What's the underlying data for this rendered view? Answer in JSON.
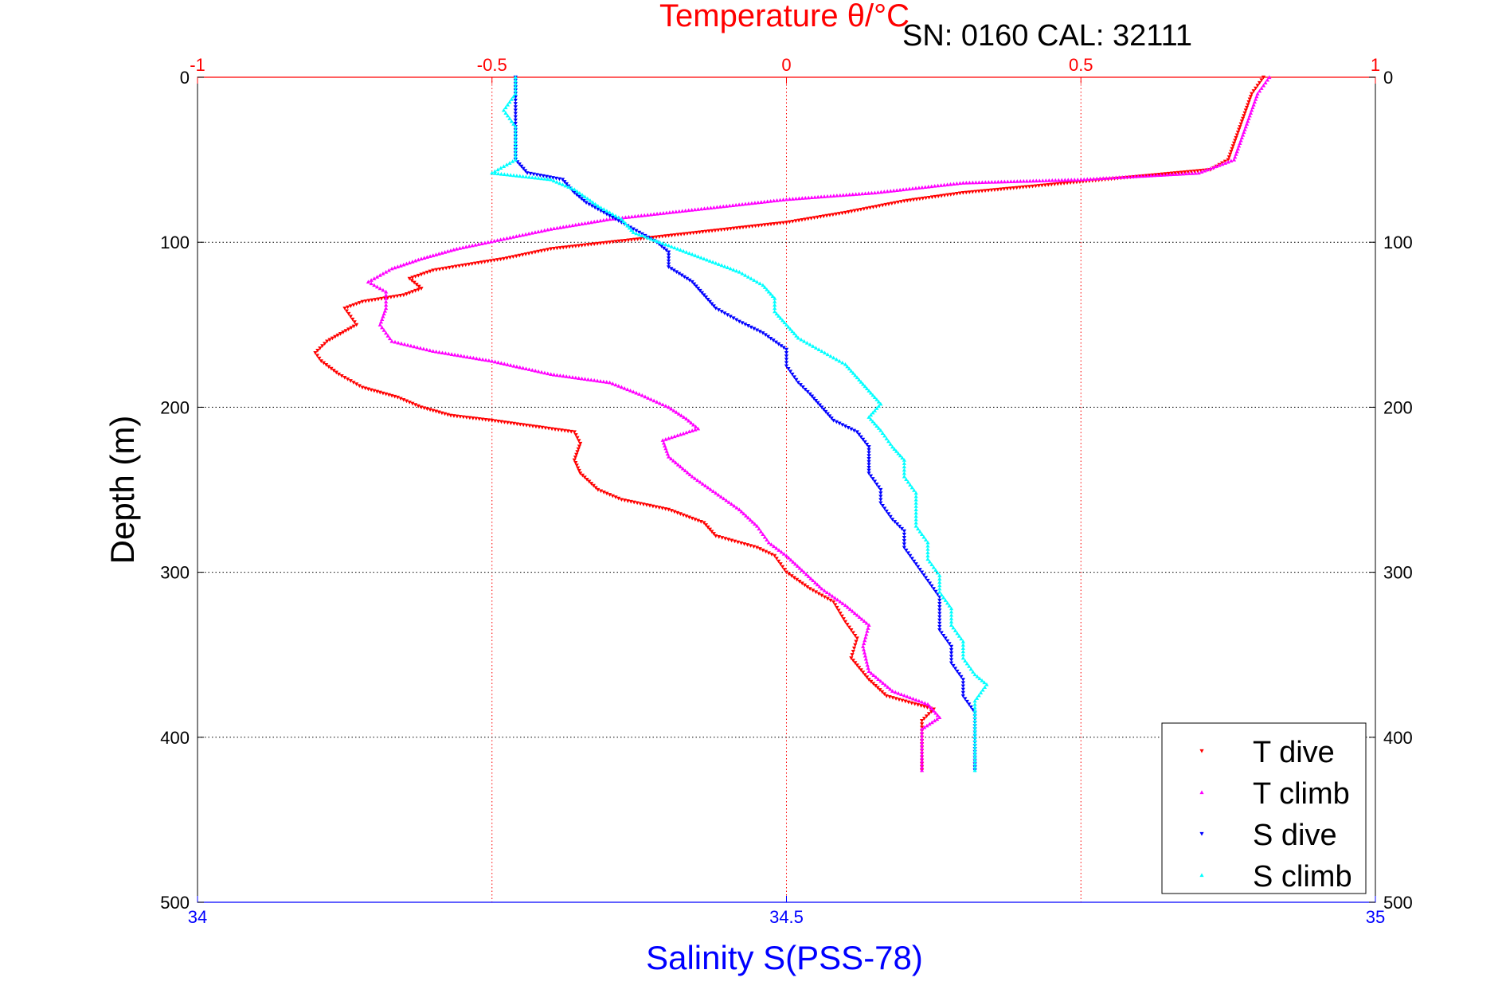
{
  "chart_data": {
    "type": "scatter",
    "title_top": "Temperature θ/°C",
    "annotation": "SN: 0160  CAL: 32111",
    "xlabel_bottom": "Salinity S(PSS-78)",
    "ylabel": "Depth (m)",
    "temperature_axis": {
      "range": [
        -1,
        1
      ],
      "ticks": [
        "-1",
        "-0.5",
        "0",
        "0.5",
        "1"
      ]
    },
    "salinity_axis": {
      "range": [
        34,
        35
      ],
      "ticks": [
        "34",
        "34.5",
        "35"
      ]
    },
    "depth_axis": {
      "range": [
        0,
        500
      ],
      "reversed": true,
      "ticks": [
        "0",
        "100",
        "200",
        "300",
        "400",
        "500"
      ]
    },
    "grid": true,
    "legend_position": "bottom-right",
    "colors": {
      "temperature_axis": "#ff0000",
      "salinity_axis": "#0000ff",
      "depth_axis": "#000000",
      "grid": "#000000"
    },
    "series": [
      {
        "name": "T dive",
        "variable": "temperature",
        "color": "#ff0000",
        "marker": "triangle-down",
        "points": [
          [
            0.81,
            0
          ],
          [
            0.79,
            10
          ],
          [
            0.78,
            20
          ],
          [
            0.77,
            30
          ],
          [
            0.76,
            40
          ],
          [
            0.75,
            50
          ],
          [
            0.72,
            56
          ],
          [
            0.6,
            60
          ],
          [
            0.45,
            65
          ],
          [
            0.3,
            70
          ],
          [
            0.2,
            75
          ],
          [
            0.1,
            82
          ],
          [
            0.0,
            88
          ],
          [
            -0.1,
            92
          ],
          [
            -0.2,
            96
          ],
          [
            -0.3,
            100
          ],
          [
            -0.4,
            104
          ],
          [
            -0.48,
            110
          ],
          [
            -0.55,
            114
          ],
          [
            -0.6,
            117
          ],
          [
            -0.64,
            122
          ],
          [
            -0.62,
            128
          ],
          [
            -0.65,
            132
          ],
          [
            -0.72,
            136
          ],
          [
            -0.75,
            140
          ],
          [
            -0.73,
            150
          ],
          [
            -0.78,
            160
          ],
          [
            -0.8,
            167
          ],
          [
            -0.79,
            172
          ],
          [
            -0.76,
            180
          ],
          [
            -0.72,
            188
          ],
          [
            -0.66,
            194
          ],
          [
            -0.62,
            200
          ],
          [
            -0.57,
            205
          ],
          [
            -0.5,
            208
          ],
          [
            -0.42,
            212
          ],
          [
            -0.36,
            215
          ],
          [
            -0.35,
            222
          ],
          [
            -0.36,
            232
          ],
          [
            -0.35,
            240
          ],
          [
            -0.32,
            250
          ],
          [
            -0.28,
            256
          ],
          [
            -0.2,
            262
          ],
          [
            -0.14,
            270
          ],
          [
            -0.12,
            278
          ],
          [
            -0.05,
            285
          ],
          [
            -0.02,
            290
          ],
          [
            0.0,
            300
          ],
          [
            0.04,
            310
          ],
          [
            0.08,
            318
          ],
          [
            0.1,
            330
          ],
          [
            0.12,
            340
          ],
          [
            0.11,
            352
          ],
          [
            0.14,
            365
          ],
          [
            0.17,
            375
          ],
          [
            0.25,
            383
          ],
          [
            0.23,
            390
          ],
          [
            0.23,
            400
          ],
          [
            0.23,
            410
          ],
          [
            0.23,
            420
          ]
        ]
      },
      {
        "name": "T climb",
        "variable": "temperature",
        "color": "#ff00ff",
        "marker": "triangle-up",
        "points": [
          [
            0.82,
            0
          ],
          [
            0.8,
            10
          ],
          [
            0.79,
            20
          ],
          [
            0.78,
            30
          ],
          [
            0.77,
            40
          ],
          [
            0.76,
            50
          ],
          [
            0.7,
            58
          ],
          [
            0.5,
            62
          ],
          [
            0.3,
            64
          ],
          [
            0.15,
            70
          ],
          [
            0.0,
            74
          ],
          [
            -0.15,
            80
          ],
          [
            -0.3,
            86
          ],
          [
            -0.4,
            92
          ],
          [
            -0.48,
            98
          ],
          [
            -0.56,
            104
          ],
          [
            -0.62,
            110
          ],
          [
            -0.67,
            116
          ],
          [
            -0.71,
            124
          ],
          [
            -0.68,
            130
          ],
          [
            -0.68,
            140
          ],
          [
            -0.69,
            150
          ],
          [
            -0.67,
            160
          ],
          [
            -0.6,
            166
          ],
          [
            -0.5,
            172
          ],
          [
            -0.4,
            180
          ],
          [
            -0.3,
            185
          ],
          [
            -0.25,
            192
          ],
          [
            -0.2,
            200
          ],
          [
            -0.17,
            207
          ],
          [
            -0.15,
            213
          ],
          [
            -0.21,
            220
          ],
          [
            -0.2,
            230
          ],
          [
            -0.16,
            242
          ],
          [
            -0.12,
            252
          ],
          [
            -0.08,
            262
          ],
          [
            -0.05,
            272
          ],
          [
            -0.03,
            282
          ],
          [
            0.0,
            290
          ],
          [
            0.03,
            300
          ],
          [
            0.06,
            310
          ],
          [
            0.1,
            320
          ],
          [
            0.14,
            332
          ],
          [
            0.13,
            345
          ],
          [
            0.14,
            360
          ],
          [
            0.18,
            372
          ],
          [
            0.24,
            380
          ],
          [
            0.26,
            388
          ],
          [
            0.23,
            395
          ],
          [
            0.23,
            405
          ],
          [
            0.23,
            420
          ]
        ]
      },
      {
        "name": "S dive",
        "variable": "salinity",
        "color": "#0000ff",
        "marker": "triangle-down",
        "points": [
          [
            34.27,
            0
          ],
          [
            34.27,
            10
          ],
          [
            34.27,
            20
          ],
          [
            34.27,
            30
          ],
          [
            34.27,
            40
          ],
          [
            34.27,
            50
          ],
          [
            34.28,
            58
          ],
          [
            34.31,
            62
          ],
          [
            34.32,
            70
          ],
          [
            34.33,
            76
          ],
          [
            34.35,
            84
          ],
          [
            34.37,
            92
          ],
          [
            34.39,
            100
          ],
          [
            34.4,
            106
          ],
          [
            34.4,
            115
          ],
          [
            34.42,
            124
          ],
          [
            34.43,
            132
          ],
          [
            34.44,
            140
          ],
          [
            34.46,
            148
          ],
          [
            34.48,
            155
          ],
          [
            34.5,
            165
          ],
          [
            34.5,
            175
          ],
          [
            34.51,
            185
          ],
          [
            34.52,
            192
          ],
          [
            34.53,
            200
          ],
          [
            34.54,
            208
          ],
          [
            34.56,
            215
          ],
          [
            34.57,
            224
          ],
          [
            34.57,
            233
          ],
          [
            34.57,
            240
          ],
          [
            34.58,
            250
          ],
          [
            34.58,
            258
          ],
          [
            34.59,
            268
          ],
          [
            34.6,
            275
          ],
          [
            34.6,
            285
          ],
          [
            34.61,
            295
          ],
          [
            34.62,
            305
          ],
          [
            34.63,
            315
          ],
          [
            34.63,
            325
          ],
          [
            34.63,
            335
          ],
          [
            34.64,
            345
          ],
          [
            34.64,
            355
          ],
          [
            34.65,
            365
          ],
          [
            34.65,
            375
          ],
          [
            34.66,
            385
          ],
          [
            34.66,
            395
          ],
          [
            34.66,
            405
          ],
          [
            34.66,
            420
          ]
        ]
      },
      {
        "name": "S climb",
        "variable": "salinity",
        "color": "#00ffff",
        "marker": "triangle-up",
        "points": [
          [
            34.27,
            0
          ],
          [
            34.27,
            10
          ],
          [
            34.26,
            20
          ],
          [
            34.27,
            30
          ],
          [
            34.27,
            40
          ],
          [
            34.27,
            50
          ],
          [
            34.25,
            58
          ],
          [
            34.3,
            62
          ],
          [
            34.32,
            68
          ],
          [
            34.34,
            78
          ],
          [
            34.36,
            86
          ],
          [
            34.37,
            94
          ],
          [
            34.4,
            102
          ],
          [
            34.43,
            110
          ],
          [
            34.46,
            118
          ],
          [
            34.48,
            126
          ],
          [
            34.49,
            134
          ],
          [
            34.49,
            142
          ],
          [
            34.5,
            150
          ],
          [
            34.51,
            158
          ],
          [
            34.53,
            166
          ],
          [
            34.55,
            174
          ],
          [
            34.56,
            182
          ],
          [
            34.57,
            190
          ],
          [
            34.58,
            198
          ],
          [
            34.57,
            206
          ],
          [
            34.58,
            214
          ],
          [
            34.59,
            224
          ],
          [
            34.6,
            232
          ],
          [
            34.6,
            242
          ],
          [
            34.61,
            252
          ],
          [
            34.61,
            262
          ],
          [
            34.61,
            272
          ],
          [
            34.62,
            282
          ],
          [
            34.62,
            292
          ],
          [
            34.63,
            302
          ],
          [
            34.63,
            312
          ],
          [
            34.64,
            322
          ],
          [
            34.64,
            332
          ],
          [
            34.65,
            342
          ],
          [
            34.65,
            352
          ],
          [
            34.66,
            362
          ],
          [
            34.67,
            368
          ],
          [
            34.66,
            378
          ],
          [
            34.66,
            388
          ],
          [
            34.66,
            400
          ],
          [
            34.66,
            410
          ],
          [
            34.66,
            420
          ]
        ]
      }
    ]
  }
}
